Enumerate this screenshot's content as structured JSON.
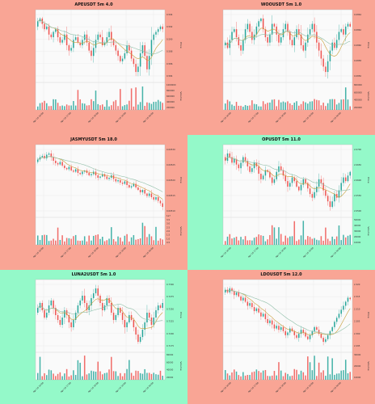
{
  "colors": {
    "bg_red": "#f9a595",
    "bg_green": "#94f9c9",
    "plot_bg": "#fafafa",
    "up": "#26a69a",
    "down": "#ef5350",
    "ma1": "#c8a03c",
    "ma2": "#8fbfa8",
    "grid": "#e3e3e3"
  },
  "chart_data": [
    {
      "type": "candlestick",
      "title": "APEUSDT 5m 4.0",
      "background": "red",
      "ylabel": "Price",
      "vlabel": "Volume",
      "price_ticks": [
        "0.594",
        "0.592",
        "0.590",
        "0.588",
        "0.586",
        "0.584"
      ],
      "volume_ticks": [
        "1000000",
        "800000",
        "600000",
        "400000",
        "200000"
      ],
      "x_ticks": [
        "Apr 10 16:00",
        "Apr 10 17:00",
        "Apr 10 18:00",
        "Apr 10 19:00",
        "Apr 10 20:00"
      ],
      "series": {
        "start": 0.5915,
        "points": [
          0.5925,
          0.593,
          0.592,
          0.591,
          0.5915,
          0.59,
          0.5895,
          0.5905,
          0.591,
          0.5895,
          0.5885,
          0.589,
          0.59,
          0.588,
          0.587,
          0.5875,
          0.589,
          0.5895,
          0.5885,
          0.588,
          0.589,
          0.59,
          0.5885,
          0.587,
          0.586,
          0.5875,
          0.589,
          0.59,
          0.5895,
          0.588,
          0.5885,
          0.5895,
          0.5905,
          0.589,
          0.588,
          0.587,
          0.586,
          0.585,
          0.5855,
          0.5865,
          0.588,
          0.587,
          0.5855,
          0.5845,
          0.583,
          0.584,
          0.5865,
          0.588,
          0.586,
          0.5835,
          0.586,
          0.589,
          0.59,
          0.5905,
          0.591,
          0.5915,
          0.591
        ]
      }
    },
    {
      "type": "candlestick",
      "title": "WOOUSDT 5m 1.0",
      "background": "red",
      "ylabel": "Price",
      "vlabel": "Volume",
      "price_ticks": [
        "0.0864",
        "0.0862",
        "0.0860",
        "0.0858",
        "0.0856"
      ],
      "volume_ticks": [
        "800000",
        "600000",
        "400000",
        "200000"
      ],
      "x_ticks": [
        "Apr 10 16:00",
        "Apr 10 17:00",
        "Apr 10 18:00",
        "Apr 10 19:00",
        "Apr 10 20:00"
      ],
      "series": {
        "start": 0.086,
        "points": [
          0.08605,
          0.08595,
          0.0861,
          0.08625,
          0.0863,
          0.08615,
          0.086,
          0.0859,
          0.0861,
          0.0863,
          0.0864,
          0.08625,
          0.0861,
          0.0862,
          0.08635,
          0.08645,
          0.0865,
          0.0863,
          0.08615,
          0.08605,
          0.0862,
          0.0864,
          0.08635,
          0.0862,
          0.08605,
          0.08615,
          0.0863,
          0.0864,
          0.08625,
          0.0861,
          0.086,
          0.08615,
          0.0863,
          0.0862,
          0.086,
          0.0859,
          0.08605,
          0.0862,
          0.0863,
          0.0864,
          0.08625,
          0.08605,
          0.0859,
          0.08575,
          0.0856,
          0.0855,
          0.0857,
          0.0859,
          0.08605,
          0.08595,
          0.0861,
          0.08625,
          0.0863,
          0.0862,
          0.08635,
          0.0864,
          0.08635
        ]
      }
    },
    {
      "type": "candlestick",
      "title": "JASMYUSDT 5m 18.0",
      "background": "red",
      "ylabel": "Price",
      "vlabel": "Volume",
      "price_ticks": [
        "0.00530",
        "0.00525",
        "0.00520",
        "0.00515",
        "0.00510"
      ],
      "volume_ticks": [
        "3.5",
        "3.0",
        "2.5",
        "2.0",
        "1.5",
        "1.0",
        "0.5"
      ],
      "volume_exponent": "1e7",
      "x_ticks": [
        "Apr 10 16:00",
        "Apr 10 17:00",
        "Apr 10 18:00",
        "Apr 10 19:00",
        "Apr 10 20:00"
      ],
      "series": {
        "start": 0.005265,
        "points": [
          0.005275,
          0.005285,
          0.00529,
          0.00528,
          0.005295,
          0.0053,
          0.005285,
          0.00527,
          0.00526,
          0.005255,
          0.005265,
          0.00525,
          0.00524,
          0.005235,
          0.005245,
          0.00523,
          0.005225,
          0.005235,
          0.00522,
          0.005215,
          0.005225,
          0.00523,
          0.00522,
          0.00521,
          0.005215,
          0.005225,
          0.00521,
          0.0052,
          0.005205,
          0.005215,
          0.005205,
          0.005195,
          0.0052,
          0.00521,
          0.005195,
          0.005185,
          0.00519,
          0.00518,
          0.005175,
          0.005185,
          0.00517,
          0.00516,
          0.005165,
          0.005175,
          0.00516,
          0.00515,
          0.00514,
          0.00515,
          0.005135,
          0.005125,
          0.005135,
          0.00512,
          0.00511,
          0.00512,
          0.005105,
          0.005095,
          0.00508
        ]
      }
    },
    {
      "type": "candlestick",
      "title": "OPUSDT 5m 11.0",
      "background": "green",
      "ylabel": "Price",
      "vlabel": "Volume",
      "price_ticks": [
        "2.0700",
        "2.0650",
        "2.0600",
        "2.0550",
        "2.0500"
      ],
      "volume_ticks": [
        "50000",
        "40000",
        "30000",
        "20000",
        "10000"
      ],
      "x_ticks": [
        "Apr 10 16:00",
        "Apr 10 17:00",
        "Apr 10 18:00",
        "Apr 10 19:00",
        "Apr 10 20:00"
      ],
      "series": {
        "start": 2.068,
        "points": [
          2.067,
          2.069,
          2.068,
          2.0665,
          2.0675,
          2.066,
          2.065,
          2.0665,
          2.068,
          2.067,
          2.0655,
          2.064,
          2.065,
          2.0665,
          2.0655,
          2.0635,
          2.062,
          2.063,
          2.0645,
          2.064,
          2.0625,
          2.061,
          2.062,
          2.064,
          2.0655,
          2.0645,
          2.063,
          2.0615,
          2.06,
          2.061,
          2.0625,
          2.0615,
          2.06,
          2.059,
          2.0605,
          2.062,
          2.061,
          2.0595,
          2.058,
          2.057,
          2.0585,
          2.06,
          2.062,
          2.061,
          2.059,
          2.0575,
          2.056,
          2.0545,
          2.056,
          2.058,
          2.057,
          2.059,
          2.061,
          2.0625,
          2.0615,
          2.063,
          2.064
        ]
      }
    },
    {
      "type": "candlestick",
      "title": "LUNA2USDT 5m 1.0",
      "background": "green",
      "ylabel": "Price",
      "vlabel": "Volume",
      "price_ticks": [
        "0.7300",
        "0.7275",
        "0.7250",
        "0.7225",
        "0.7200",
        "0.7175"
      ],
      "volume_ticks": [
        "80000",
        "60000",
        "40000",
        "20000"
      ],
      "x_ticks": [
        "Apr 10 16:00",
        "Apr 10 17:00",
        "Apr 10 18:00",
        "Apr 10 19:00",
        "Apr 10 20:00"
      ],
      "series": {
        "start": 0.725,
        "points": [
          0.726,
          0.727,
          0.7255,
          0.724,
          0.725,
          0.7265,
          0.7275,
          0.726,
          0.7245,
          0.7235,
          0.7225,
          0.724,
          0.7255,
          0.7245,
          0.723,
          0.722,
          0.7235,
          0.725,
          0.7265,
          0.7275,
          0.7285,
          0.727,
          0.7255,
          0.7265,
          0.728,
          0.729,
          0.73,
          0.7285,
          0.727,
          0.7255,
          0.7265,
          0.728,
          0.727,
          0.725,
          0.7235,
          0.7245,
          0.726,
          0.725,
          0.7235,
          0.722,
          0.723,
          0.7245,
          0.7235,
          0.722,
          0.7205,
          0.719,
          0.72,
          0.7215,
          0.723,
          0.725,
          0.724,
          0.7225,
          0.724,
          0.7255,
          0.7265,
          0.726,
          0.727
        ]
      }
    },
    {
      "type": "candlestick",
      "title": "LDOUSDT 5m 12.0",
      "background": "red",
      "ylabel": "Price",
      "vlabel": "Volume",
      "price_ticks": [
        "2.320",
        "2.315",
        "2.310",
        "2.305",
        "2.300",
        "2.295"
      ],
      "volume_ticks": [
        "30000",
        "20000",
        "10000"
      ],
      "x_ticks": [
        "Apr 10 16:00",
        "Apr 10 17:00",
        "Apr 10 18:00",
        "Apr 10 19:00",
        "Apr 10 20:00"
      ],
      "series": {
        "start": 2.316,
        "points": [
          2.317,
          2.316,
          2.3175,
          2.3165,
          2.315,
          2.316,
          2.3145,
          2.313,
          2.314,
          2.3125,
          2.311,
          2.312,
          2.3105,
          2.309,
          2.31,
          2.3085,
          2.307,
          2.308,
          2.306,
          2.3045,
          2.3055,
          2.304,
          2.3025,
          2.3035,
          2.302,
          2.303,
          2.3015,
          2.3,
          2.301,
          2.3025,
          2.3015,
          2.3,
          2.299,
          2.3005,
          2.302,
          2.301,
          2.2995,
          2.2985,
          2.3,
          2.3015,
          2.303,
          2.302,
          2.3005,
          2.299,
          2.2975,
          2.2985,
          2.3,
          2.3015,
          2.303,
          2.305,
          2.3065,
          2.308,
          2.3095,
          2.311,
          2.3125,
          2.314,
          2.3135
        ]
      }
    }
  ]
}
